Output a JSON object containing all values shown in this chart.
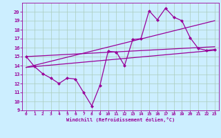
{
  "background_color": "#cceeff",
  "grid_color": "#aaccbb",
  "line_color": "#990099",
  "xlabel": "Windchill (Refroidissement éolien,°C)",
  "xlim": [
    -0.5,
    23.5
  ],
  "ylim": [
    9,
    21
  ],
  "yticks": [
    9,
    10,
    11,
    12,
    13,
    14,
    15,
    16,
    17,
    18,
    19,
    20
  ],
  "xticks": [
    0,
    1,
    2,
    3,
    4,
    5,
    6,
    7,
    8,
    9,
    10,
    11,
    12,
    13,
    14,
    15,
    16,
    17,
    18,
    19,
    20,
    21,
    22,
    23
  ],
  "series": [
    {
      "x": [
        0,
        1,
        2,
        3,
        4,
        5,
        6,
        7,
        8,
        9,
        10,
        11,
        12,
        13,
        14,
        15,
        16,
        17,
        18,
        19,
        20,
        21,
        22,
        23
      ],
      "y": [
        15.0,
        13.9,
        13.1,
        12.6,
        12.0,
        12.6,
        12.5,
        11.0,
        9.5,
        11.8,
        15.6,
        15.5,
        14.0,
        16.9,
        17.0,
        20.1,
        19.1,
        20.4,
        19.4,
        19.0,
        17.1,
        15.9,
        15.7,
        15.8
      ],
      "marker": "D",
      "markersize": 2.0,
      "linewidth": 0.9
    },
    {
      "x": [
        0,
        23
      ],
      "y": [
        13.8,
        15.7
      ],
      "marker": null,
      "linewidth": 0.9
    },
    {
      "x": [
        0,
        23
      ],
      "y": [
        15.0,
        16.1
      ],
      "marker": null,
      "linewidth": 0.9
    },
    {
      "x": [
        0,
        23
      ],
      "y": [
        13.8,
        19.0
      ],
      "marker": null,
      "linewidth": 0.9
    }
  ]
}
